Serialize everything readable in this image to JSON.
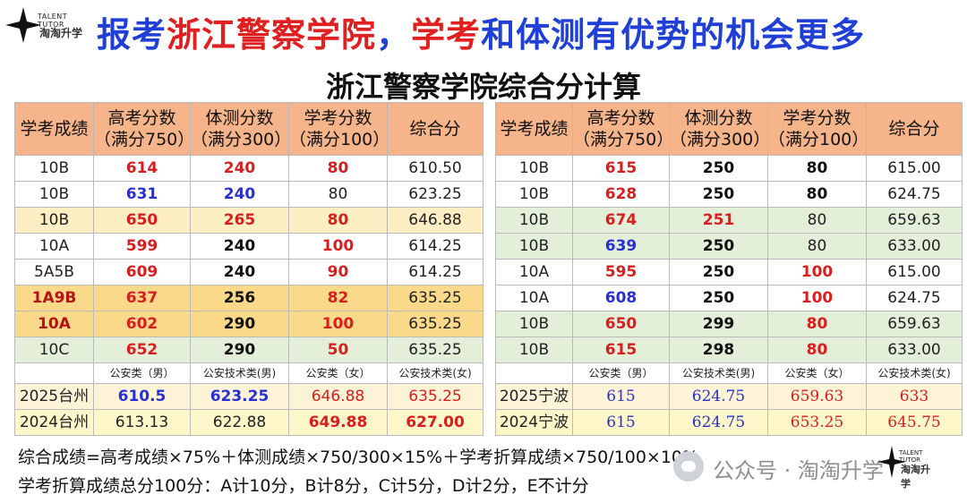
{
  "logo": {
    "en": "TALENT TUTOR",
    "cn": "淘淘升学"
  },
  "headline": [
    {
      "t": "报考",
      "c": "blue"
    },
    {
      "t": "浙江警察学院",
      "c": "red"
    },
    {
      "t": "，",
      "c": "blue"
    },
    {
      "t": "学考",
      "c": "red"
    },
    {
      "t": "和体测有优势的机会更多",
      "c": "blue"
    }
  ],
  "subtitle": "浙江警察学院综合分计算",
  "headers": [
    [
      "学考成绩"
    ],
    [
      "高考分数",
      "（满分750）"
    ],
    [
      "体测分数",
      "（满分300）"
    ],
    [
      "学考分数",
      "（满分100）"
    ],
    [
      "综合分"
    ]
  ],
  "left": {
    "rows": [
      {
        "bg": "white",
        "cells": [
          [
            "10B",
            "plain"
          ],
          [
            "614",
            "red"
          ],
          [
            "240",
            "red"
          ],
          [
            "80",
            "red"
          ],
          [
            "610.50",
            "plain"
          ]
        ]
      },
      {
        "bg": "white",
        "cells": [
          [
            "10B",
            "plain"
          ],
          [
            "631",
            "blue"
          ],
          [
            "240",
            "blue"
          ],
          [
            "80",
            "plain"
          ],
          [
            "623.25",
            "plain"
          ]
        ]
      },
      {
        "bg": "yellow",
        "cells": [
          [
            "10B",
            "plain"
          ],
          [
            "650",
            "red"
          ],
          [
            "265",
            "red"
          ],
          [
            "80",
            "red"
          ],
          [
            "646.88",
            "plain"
          ]
        ]
      },
      {
        "bg": "white",
        "cells": [
          [
            "10A",
            "plain"
          ],
          [
            "599",
            "red"
          ],
          [
            "240",
            "black"
          ],
          [
            "100",
            "red"
          ],
          [
            "614.25",
            "plain"
          ]
        ]
      },
      {
        "bg": "white",
        "cells": [
          [
            "5A5B",
            "plain"
          ],
          [
            "609",
            "red"
          ],
          [
            "240",
            "black"
          ],
          [
            "90",
            "red"
          ],
          [
            "614.25",
            "plain"
          ]
        ]
      },
      {
        "bg": "gold",
        "cells": [
          [
            "1A9B",
            "darkred"
          ],
          [
            "637",
            "red"
          ],
          [
            "256",
            "black"
          ],
          [
            "82",
            "red"
          ],
          [
            "635.25",
            "plain"
          ]
        ]
      },
      {
        "bg": "gold",
        "cells": [
          [
            "10A",
            "darkred"
          ],
          [
            "602",
            "red"
          ],
          [
            "290",
            "black"
          ],
          [
            "100",
            "red"
          ],
          [
            "635.25",
            "plain"
          ]
        ]
      },
      {
        "bg": "green",
        "cells": [
          [
            "10C",
            "plain"
          ],
          [
            "652",
            "red"
          ],
          [
            "290",
            "black"
          ],
          [
            "50",
            "red"
          ],
          [
            "635.25",
            "plain"
          ]
        ]
      }
    ],
    "notes": [
      "",
      "公安类（男）",
      "公安技术类(男)",
      "公安类（女）",
      "公安技术类(女)"
    ],
    "summary": [
      {
        "bg": "cream",
        "cells": [
          [
            "2025台州",
            "plain"
          ],
          [
            "610.5",
            "blue"
          ],
          [
            "623.25",
            "blue"
          ],
          [
            "646.88",
            "nred"
          ],
          [
            "635.25",
            "nred"
          ]
        ]
      },
      {
        "bg": "lemon",
        "cells": [
          [
            "2024台州",
            "plain"
          ],
          [
            "613.13",
            "plain"
          ],
          [
            "622.88",
            "plain"
          ],
          [
            "649.88",
            "red"
          ],
          [
            "627.00",
            "red"
          ]
        ]
      }
    ]
  },
  "right": {
    "rows": [
      {
        "bg": "white",
        "cells": [
          [
            "10B",
            "plain"
          ],
          [
            "615",
            "red"
          ],
          [
            "250",
            "black"
          ],
          [
            "80",
            "black"
          ],
          [
            "615.00",
            "plain"
          ]
        ]
      },
      {
        "bg": "white",
        "cells": [
          [
            "10B",
            "plain"
          ],
          [
            "628",
            "red"
          ],
          [
            "250",
            "black"
          ],
          [
            "80",
            "black"
          ],
          [
            "624.75",
            "plain"
          ]
        ]
      },
      {
        "bg": "green",
        "cells": [
          [
            "10B",
            "plain"
          ],
          [
            "674",
            "red"
          ],
          [
            "251",
            "red"
          ],
          [
            "80",
            "plain"
          ],
          [
            "659.63",
            "plain"
          ]
        ]
      },
      {
        "bg": "green",
        "cells": [
          [
            "10B",
            "plain"
          ],
          [
            "639",
            "blue"
          ],
          [
            "250",
            "black"
          ],
          [
            "80",
            "plain"
          ],
          [
            "633.00",
            "plain"
          ]
        ]
      },
      {
        "bg": "white",
        "cells": [
          [
            "10A",
            "plain"
          ],
          [
            "595",
            "red"
          ],
          [
            "250",
            "black"
          ],
          [
            "100",
            "red"
          ],
          [
            "615.00",
            "plain"
          ]
        ]
      },
      {
        "bg": "white",
        "cells": [
          [
            "10A",
            "plain"
          ],
          [
            "608",
            "blue"
          ],
          [
            "250",
            "black"
          ],
          [
            "100",
            "red"
          ],
          [
            "624.75",
            "plain"
          ]
        ]
      },
      {
        "bg": "green",
        "cells": [
          [
            "10B",
            "plain"
          ],
          [
            "650",
            "red"
          ],
          [
            "299",
            "black"
          ],
          [
            "80",
            "red"
          ],
          [
            "659.63",
            "plain"
          ]
        ]
      },
      {
        "bg": "green",
        "cells": [
          [
            "10B",
            "plain"
          ],
          [
            "615",
            "red"
          ],
          [
            "298",
            "black"
          ],
          [
            "80",
            "red"
          ],
          [
            "633.00",
            "plain"
          ]
        ]
      }
    ],
    "notes": [
      "",
      "公安类（男）",
      "公安技术类(男)",
      "公安类（女）",
      "公安技术类(女)"
    ],
    "summary": [
      {
        "bg": "cream",
        "cells": [
          [
            "2025宁波",
            "plain"
          ],
          [
            "615",
            "nblue"
          ],
          [
            "624.75",
            "nblue"
          ],
          [
            "659.63",
            "nred"
          ],
          [
            "633",
            "nred"
          ]
        ]
      },
      {
        "bg": "lemon",
        "cells": [
          [
            "2024宁波",
            "plain"
          ],
          [
            "615",
            "nblue"
          ],
          [
            "624.75",
            "nblue"
          ],
          [
            "653.25",
            "nred"
          ],
          [
            "645.75",
            "nred"
          ]
        ]
      }
    ]
  },
  "formula": "综合成绩=高考成绩×75%＋体测成绩×750/300×15%＋学考折算成绩×750/100×10%",
  "rule": "学考折算成绩总分100分：A计10分，B计8分，C计5分，D计2分，E不计分",
  "watermark": {
    "text": "公众号 · 淘淘升学",
    "icon": "wechat-icon"
  },
  "colors": {
    "header_bg": "#f6b48a",
    "red": "#d81f1f",
    "blue": "#2830d4",
    "headline_blue": "#1f3fd6",
    "headline_red": "#e02020"
  }
}
